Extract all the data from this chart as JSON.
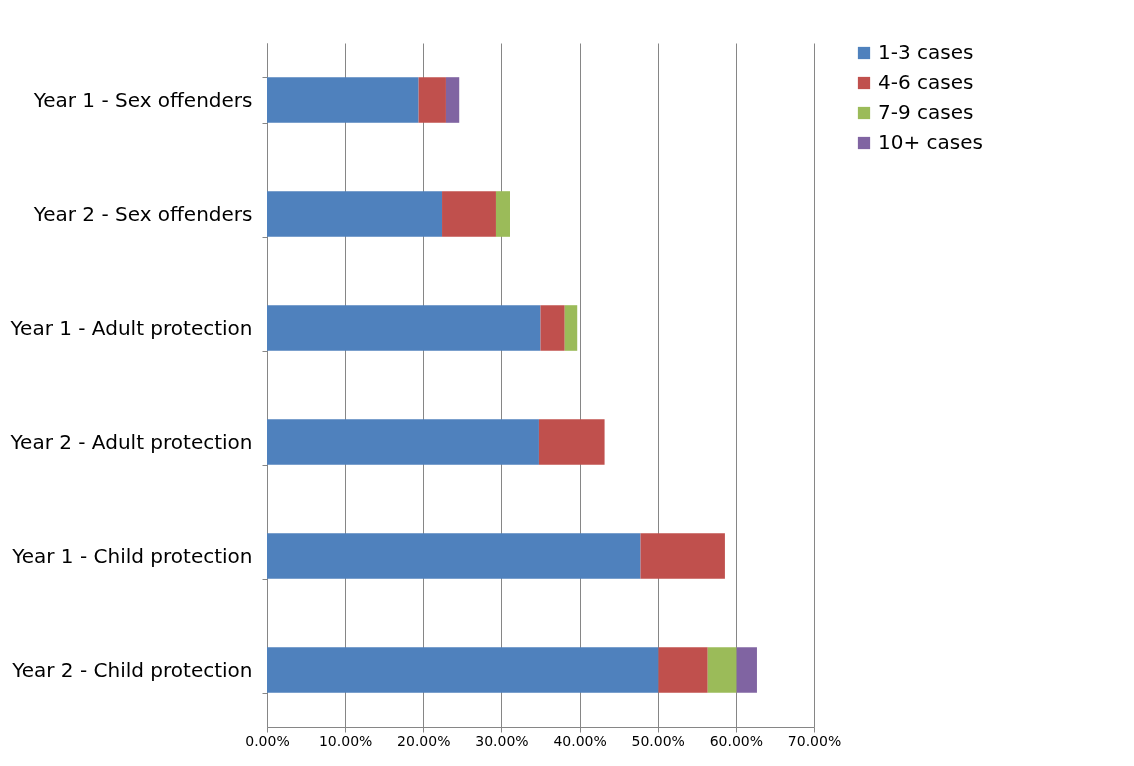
{
  "chart_data": {
    "type": "bar",
    "orientation": "horizontal",
    "stacked": true,
    "categories": [
      "Year 1 - Sex offenders",
      "Year 2 - Sex offenders",
      "Year 1 - Adult protection",
      "Year 2 - Adult protection",
      "Year 1 - Child protection",
      "Year 2 - Child protection"
    ],
    "series": [
      {
        "name": "1-3 cases",
        "color": "#4f81bd",
        "values": [
          19.4,
          22.4,
          35.0,
          34.8,
          47.8,
          50.1
        ]
      },
      {
        "name": "4-6 cases",
        "color": "#c0504d",
        "values": [
          3.5,
          6.9,
          3.1,
          8.4,
          10.8,
          6.3
        ]
      },
      {
        "name": "7-9 cases",
        "color": "#9bbb59",
        "values": [
          null,
          1.8,
          1.6,
          null,
          null,
          3.7
        ]
      },
      {
        "name": "10+ cases",
        "color": "#8064a2",
        "values": [
          1.7,
          null,
          null,
          null,
          null,
          2.6
        ]
      }
    ],
    "xlim": [
      0,
      70
    ],
    "xticks": [
      {
        "value": 0,
        "label": "0.00%"
      },
      {
        "value": 10,
        "label": "10.00%"
      },
      {
        "value": 20,
        "label": "20.00%"
      },
      {
        "value": 30,
        "label": "30.00%"
      },
      {
        "value": 40,
        "label": "40.00%"
      },
      {
        "value": 50,
        "label": "50.00%"
      },
      {
        "value": 60,
        "label": "60.00%"
      },
      {
        "value": 70,
        "label": "70.00%"
      }
    ],
    "grid": "x",
    "legend": "right"
  }
}
